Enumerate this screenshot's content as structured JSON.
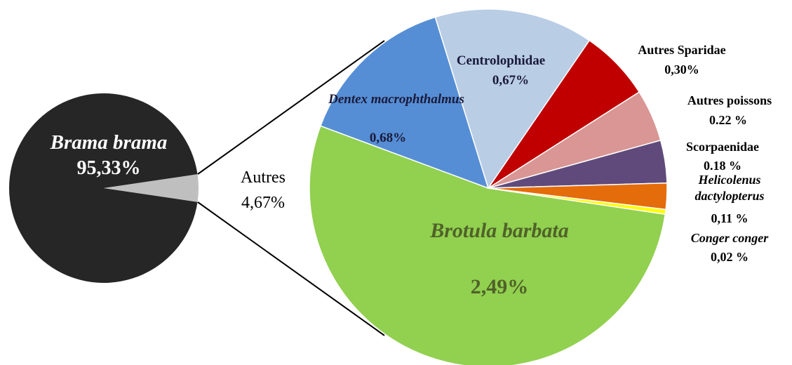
{
  "chart_data": [
    {
      "type": "pie",
      "categories": [
        "Brama brama",
        "Autres"
      ],
      "values": [
        95.33,
        4.67
      ],
      "value_labels": [
        "95,33%",
        "4,67%"
      ],
      "colors": [
        "#262626",
        "#bfbfbf"
      ]
    },
    {
      "type": "pie",
      "categories": [
        "Brotula barbata",
        "Dentex macrophthalmus",
        "Centrolophidae",
        "Autres Sparidae",
        "Autres poissons",
        "Scorpaenidae",
        "Helicolenus dactylopterus",
        "Conger conger"
      ],
      "values": [
        2.49,
        0.68,
        0.67,
        0.3,
        0.22,
        0.18,
        0.11,
        0.02
      ],
      "value_labels": [
        "2,49%",
        "0,68%",
        "0,67%",
        "0,30%",
        "0.22 %",
        "0.18 %",
        "0,11 %",
        "0,02 %"
      ],
      "colors": [
        "#92d050",
        "#558ed5",
        "#b9cde5",
        "#c00000",
        "#d99694",
        "#604a7b",
        "#e46c0a",
        "#ffff00"
      ]
    }
  ]
}
